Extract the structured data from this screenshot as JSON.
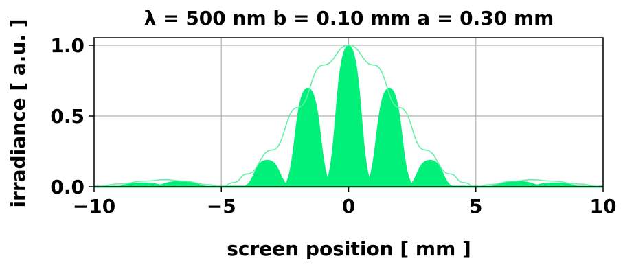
{
  "chart_data": {
    "type": "area",
    "title": "λ = 500 nm  b = 0.10 mm   a = 0.30 mm",
    "xlabel": "screen position  [ mm ]",
    "ylabel": "irradiance [ a.u. ]",
    "xlim": [
      -10,
      10
    ],
    "ylim": [
      0.0,
      1.0
    ],
    "x_ticks": [
      -10,
      -5,
      0,
      5,
      10
    ],
    "x_tick_labels": [
      "−10",
      "−5",
      "0",
      "5",
      "10"
    ],
    "y_ticks": [
      0.0,
      0.5,
      1.0
    ],
    "y_tick_labels": [
      "0.0",
      "0.5",
      "1.0"
    ],
    "grid": true,
    "fill_color": "#00f07a",
    "envelope_color": "#66f0a8",
    "series": [
      {
        "kind": "filled-peaks",
        "peaks": [
          {
            "x": -8.1,
            "y": 0.03
          },
          {
            "x": -6.6,
            "y": 0.04
          },
          {
            "x": -3.2,
            "y": 0.19
          },
          {
            "x": -1.6,
            "y": 0.7
          },
          {
            "x": 0.0,
            "y": 1.0
          },
          {
            "x": 1.6,
            "y": 0.7
          },
          {
            "x": 3.2,
            "y": 0.19
          },
          {
            "x": 6.6,
            "y": 0.04
          },
          {
            "x": 8.1,
            "y": 0.03
          }
        ]
      },
      {
        "kind": "envelope-line",
        "points": [
          {
            "x": -10,
            "y": 0.0
          },
          {
            "x": -9,
            "y": 0.02
          },
          {
            "x": -8,
            "y": 0.04
          },
          {
            "x": -7.2,
            "y": 0.05
          },
          {
            "x": -6.5,
            "y": 0.04
          },
          {
            "x": -5.5,
            "y": 0.015
          },
          {
            "x": -5,
            "y": 0.0
          },
          {
            "x": -4.5,
            "y": 0.03
          },
          {
            "x": -4,
            "y": 0.09
          },
          {
            "x": -3,
            "y": 0.26
          },
          {
            "x": -2,
            "y": 0.56
          },
          {
            "x": -1,
            "y": 0.86
          },
          {
            "x": 0,
            "y": 1.0
          },
          {
            "x": 1,
            "y": 0.86
          },
          {
            "x": 2,
            "y": 0.56
          },
          {
            "x": 3,
            "y": 0.26
          },
          {
            "x": 4,
            "y": 0.09
          },
          {
            "x": 4.5,
            "y": 0.03
          },
          {
            "x": 5,
            "y": 0.0
          },
          {
            "x": 5.5,
            "y": 0.015
          },
          {
            "x": 6.5,
            "y": 0.04
          },
          {
            "x": 7.2,
            "y": 0.05
          },
          {
            "x": 8,
            "y": 0.04
          },
          {
            "x": 9,
            "y": 0.02
          },
          {
            "x": 10,
            "y": 0.0
          }
        ]
      }
    ]
  }
}
